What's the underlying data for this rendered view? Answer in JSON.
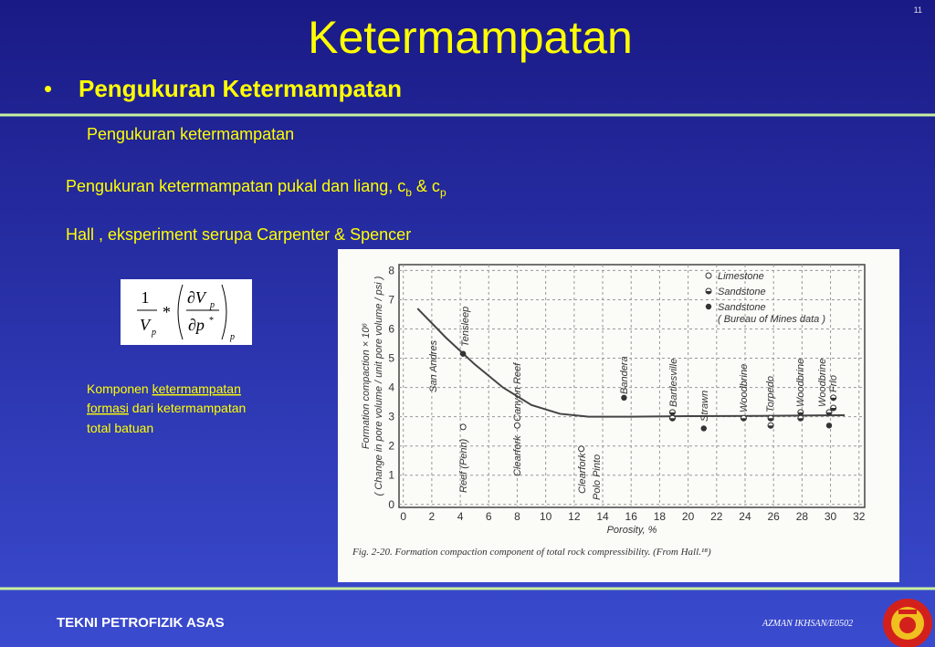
{
  "slide_number": "11",
  "title": "Ketermampatan",
  "bullet": "Pengukuran Ketermampatan",
  "subheading": "Pengukuran ketermampatan",
  "line1": {
    "text": "Pengukuran ketermampatan pukal dan liang, c",
    "sub1": "b",
    "mid": " & c",
    "sub2": "p"
  },
  "line2": "Hall , eksperiment serupa Carpenter & Spencer",
  "formula": {
    "one": "1",
    "V": "V",
    "p": "p",
    "star": "*",
    "dV": "∂V",
    "dp": "∂p"
  },
  "note": {
    "a": "Komponen ",
    "link1": "ketermampatan",
    "link2": "formasi",
    "b": " dari ketermampatan",
    "c": "total batuan"
  },
  "footer": {
    "left": "TEKNI PETROFIZIK ASAS",
    "right": "AZMAN IKHSAN/E0502"
  },
  "figure": {
    "chart_data": {
      "type": "scatter",
      "xlabel": "Porosity, %",
      "ylabel": [
        "Formation compaction × 10⁶",
        "( Change in pore volume / unit pore volume / psi )"
      ],
      "caption": "Fig. 2-20. Formation compaction component of total rock compressibility. (From Hall.¹⁸)",
      "xlim": [
        -0.3,
        32.4
      ],
      "ylim": [
        -0.1,
        8.2
      ],
      "xticks": [
        0,
        2,
        4,
        6,
        8,
        10,
        12,
        14,
        16,
        18,
        20,
        22,
        24,
        26,
        28,
        30,
        32
      ],
      "yticks": [
        0,
        1,
        2,
        3,
        4,
        5,
        6,
        7,
        8
      ],
      "grid": true,
      "series": [
        {
          "name": "Limestone",
          "marker": "open",
          "x": [
            4.2,
            8.0,
            12.5
          ],
          "y": [
            2.65,
            2.7,
            1.9
          ]
        },
        {
          "name": "Sandstone",
          "marker": "half",
          "x": [
            18.9,
            18.9,
            23.9,
            25.8,
            25.8,
            27.9,
            27.9,
            29.9,
            30.2,
            30.2
          ],
          "y": [
            3.15,
            2.95,
            2.95,
            2.95,
            2.7,
            3.15,
            2.95,
            3.15,
            3.65,
            3.3
          ]
        },
        {
          "name": "Sandstone",
          "note": "( Bureau of Mines data )",
          "marker": "filled",
          "x": [
            4.2,
            15.5,
            21.1,
            29.9
          ],
          "y": [
            5.15,
            3.65,
            2.6,
            2.7
          ]
        }
      ],
      "curve": {
        "x": [
          1,
          3,
          5,
          7,
          9,
          11,
          13,
          16,
          20,
          25,
          31
        ],
        "y": [
          6.7,
          5.7,
          4.8,
          4.0,
          3.4,
          3.1,
          3.0,
          3.0,
          3.02,
          3.03,
          3.05
        ]
      },
      "annotations": [
        "San Andres",
        "Tensleep",
        "Reef (Penn)",
        "Clearfork",
        "Canyon Reef",
        "Clearfork",
        "Polo Pinto",
        "Bandera",
        "Bartlesville",
        "Strawn",
        "Woodbrine",
        "Torpedo",
        "Woodbrine",
        "Woodbrine",
        "Frio"
      ]
    }
  }
}
